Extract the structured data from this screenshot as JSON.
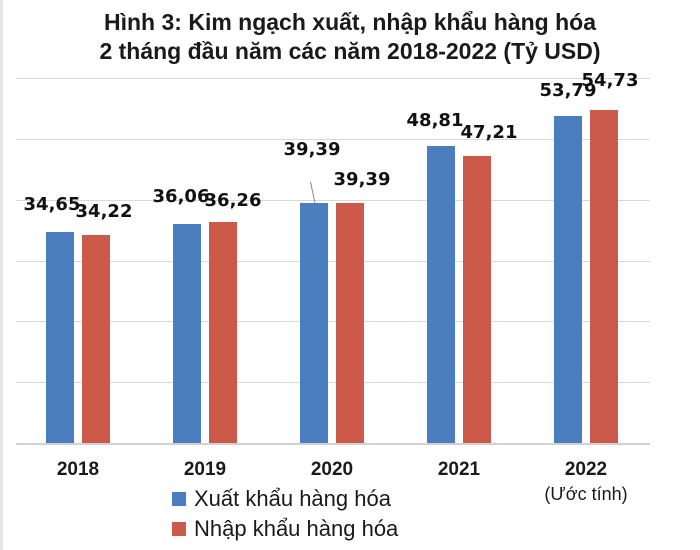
{
  "title": {
    "line1": "Hình 3: Kim ngạch xuất, nhập khẩu hàng hóa",
    "line2": "2 tháng đầu năm các năm 2018-2022 (Tỷ USD)"
  },
  "colors": {
    "export": "#4a7ebf",
    "import": "#cc5a4a"
  },
  "categories": [
    {
      "label": "2018",
      "sub": ""
    },
    {
      "label": "2019",
      "sub": ""
    },
    {
      "label": "2020",
      "sub": ""
    },
    {
      "label": "2021",
      "sub": ""
    },
    {
      "label": "2022",
      "sub": "(Ước tính)"
    }
  ],
  "labels": {
    "export": [
      "34,65",
      "36,06",
      "39,39",
      "48,81",
      "53,79"
    ],
    "import": [
      "34,22",
      "36,26",
      "39,39",
      "47,21",
      "54,73"
    ]
  },
  "legend": {
    "export": "Xuất khẩu hàng hóa",
    "import": "Nhập khẩu hàng hóa"
  },
  "chart_data": {
    "type": "bar",
    "title": "Hình 3: Kim ngạch xuất, nhập khẩu hàng hóa 2 tháng đầu năm các năm 2018-2022 (Tỷ USD)",
    "categories": [
      "2018",
      "2019",
      "2020",
      "2021",
      "2022 (Ước tính)"
    ],
    "series": [
      {
        "name": "Xuất khẩu hàng hóa",
        "color": "#4a7ebf",
        "values": [
          34.65,
          36.06,
          39.39,
          48.81,
          53.79
        ]
      },
      {
        "name": "Nhập khẩu hàng hóa",
        "color": "#cc5a4a",
        "values": [
          34.22,
          36.26,
          39.39,
          47.21,
          54.73
        ]
      }
    ],
    "xlabel": "",
    "ylabel": "Tỷ USD",
    "ylim": [
      0,
      60
    ],
    "grid": true,
    "y_axis_visible": false,
    "legend_position": "bottom",
    "data_labels": true
  }
}
